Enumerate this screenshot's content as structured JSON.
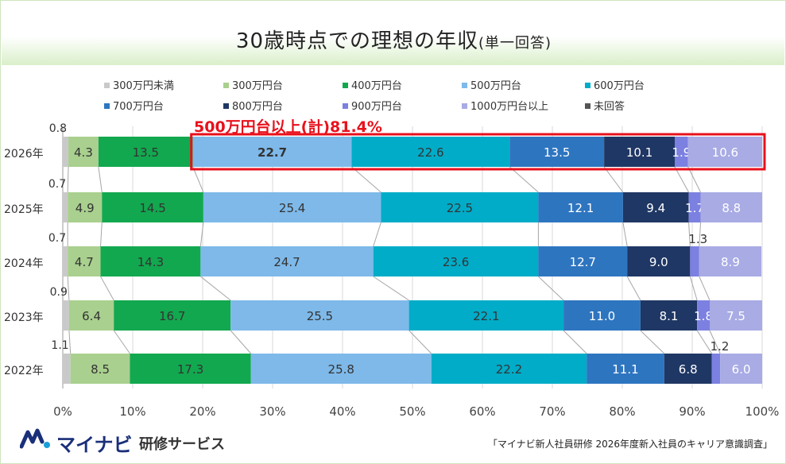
{
  "title": "30歳時点での理想の年収",
  "title_sub": "(単一回答)",
  "highlight_label": "500万円台以上(計)81.4%",
  "brand": {
    "name": "マイナビ",
    "sub": "研修サービス"
  },
  "source": "「マイナビ新人社員研修 2026年度新入社員のキャリア意識調査」",
  "colors": {
    "300万円未満": "#c9c9c9",
    "300万円台": "#a9d08e",
    "400万円台": "#12a84f",
    "500万円台": "#7eb9e9",
    "600万円台": "#00acc8",
    "700万円台": "#2e75c0",
    "800万円台": "#1f3764",
    "900万円台": "#7c80e0",
    "1000万円台以上": "#a8abe4",
    "未回答": "#555555",
    "highlight": "#e8101c"
  },
  "chart_data": {
    "type": "bar",
    "orientation": "horizontal",
    "stacked": true,
    "categories": [
      "2026年",
      "2025年",
      "2024年",
      "2023年",
      "2022年"
    ],
    "series": [
      {
        "name": "300万円未満",
        "values": [
          0.8,
          0.7,
          0.7,
          0.9,
          1.1
        ]
      },
      {
        "name": "300万円台",
        "values": [
          4.3,
          4.9,
          4.7,
          6.4,
          8.5
        ]
      },
      {
        "name": "400万円台",
        "values": [
          13.5,
          14.5,
          14.3,
          16.7,
          17.3
        ]
      },
      {
        "name": "500万円台",
        "values": [
          22.7,
          25.4,
          24.7,
          25.5,
          25.8
        ]
      },
      {
        "name": "600万円台",
        "values": [
          22.6,
          22.5,
          23.6,
          22.1,
          22.2
        ]
      },
      {
        "name": "700万円台",
        "values": [
          13.5,
          12.1,
          12.7,
          11.0,
          11.1
        ]
      },
      {
        "name": "800万円台",
        "values": [
          10.1,
          9.4,
          9.0,
          8.1,
          6.8
        ]
      },
      {
        "name": "900万円台",
        "values": [
          1.9,
          1.7,
          1.3,
          1.8,
          1.2
        ]
      },
      {
        "name": "1000万円台以上",
        "values": [
          10.6,
          8.8,
          8.9,
          7.5,
          6.0
        ]
      },
      {
        "name": "未回答",
        "values": [
          0,
          0,
          0,
          0,
          0
        ]
      }
    ],
    "x_ticks": [
      "0%",
      "10%",
      "20%",
      "30%",
      "40%",
      "50%",
      "60%",
      "70%",
      "80%",
      "90%",
      "100%"
    ],
    "xlim": [
      0,
      100
    ],
    "legend_position": "top",
    "highlight": {
      "row": "2026年",
      "from_series": "500万円台"
    }
  }
}
